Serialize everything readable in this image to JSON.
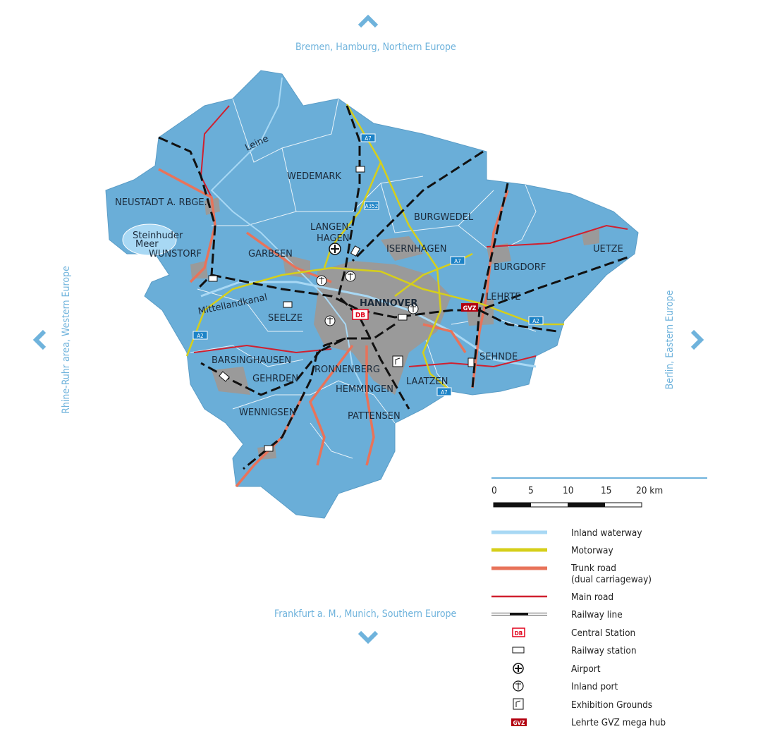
{
  "directions": {
    "north": "Bremen, Hamburg, Northern Europe",
    "south": "Frankfurt a. M., Munich, Southern Europe",
    "west": "Rhine-Ruhr area, Western Europe",
    "east": "Berlin, Eastern Europe"
  },
  "map": {
    "towns": [
      "WEDEMARK",
      "NEUSTADT A. RBGE.",
      "BURGWEDEL",
      "LANGEN-",
      "HAGEN",
      "GARBSEN",
      "ISERNHAGEN",
      "WUNSTORF",
      "UETZE",
      "BURGDORF",
      "LEHRTE",
      "HANNOVER",
      "SEELZE",
      "SEHNDE",
      "BARSINGHAUSEN",
      "GEHRDEN",
      "RONNENBERG",
      "LAATZEN",
      "HEMMINGEN",
      "WENNIGSEN",
      "PATTENSEN"
    ],
    "water_labels": [
      "Leine",
      "Steinhuder",
      "Meer",
      "Mittellandkanal"
    ],
    "motorway_shields": [
      "A7",
      "A352",
      "A7",
      "A7",
      "A2",
      "A2"
    ],
    "central_station": "DB",
    "mega_hub": "GVZ",
    "colors": {
      "land": "#6aaed8",
      "urban": "#9a9a9a",
      "waterway": "#a8d8f4",
      "motorway": "#d6cf1a",
      "trunk": "#e8735a",
      "main": "#d0202f",
      "rail": "#111111",
      "db": "#e2001a",
      "gvz": "#b3000f"
    }
  },
  "scale": {
    "ticks": [
      "0",
      "5",
      "10",
      "15",
      "20 km"
    ]
  },
  "legend": [
    {
      "label": "Inland waterway",
      "symbol": "waterway"
    },
    {
      "label": "Motorway",
      "symbol": "motorway"
    },
    {
      "label": "Trunk road\n(dual carriageway)",
      "line1": "Trunk road",
      "line2": "(dual carriageway)",
      "symbol": "trunk"
    },
    {
      "label": "Main road",
      "symbol": "main-road"
    },
    {
      "label": "Railway line",
      "symbol": "railway"
    },
    {
      "label": "Central Station",
      "symbol": "db-icon",
      "badge": "DB"
    },
    {
      "label": "Railway station",
      "symbol": "station-icon"
    },
    {
      "label": "Airport",
      "symbol": "airport-icon"
    },
    {
      "label": "Inland port",
      "symbol": "anchor-icon"
    },
    {
      "label": "Exhibition Grounds",
      "symbol": "exhibition-icon"
    },
    {
      "label": "Lehrte GVZ mega hub",
      "symbol": "gvz-icon",
      "badge": "GVZ"
    }
  ]
}
